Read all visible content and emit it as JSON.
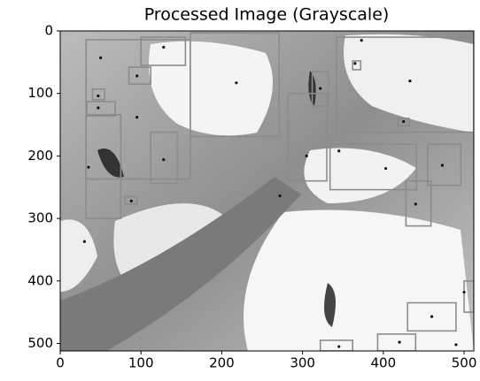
{
  "chart_data": {
    "type": "image",
    "title": "Processed Image (Grayscale)",
    "xlim": [
      0,
      512
    ],
    "ylim": [
      0,
      512
    ],
    "xticks": [
      0,
      100,
      200,
      300,
      400,
      500
    ],
    "yticks": [
      0,
      100,
      200,
      300,
      400,
      500
    ],
    "y_inverted": true,
    "box_color": "#8c8c8c",
    "point_color": "#111111",
    "boxes": [
      [
        32,
        14,
        161,
        237
      ],
      [
        161,
        3,
        271,
        169
      ],
      [
        342,
        10,
        512,
        162
      ],
      [
        112,
        162,
        145,
        244
      ],
      [
        32,
        134,
        75,
        300
      ],
      [
        282,
        100,
        330,
        240
      ],
      [
        334,
        181,
        441,
        254
      ],
      [
        455,
        181,
        496,
        247
      ],
      [
        428,
        240,
        459,
        312
      ],
      [
        430,
        435,
        490,
        480
      ],
      [
        500,
        400,
        512,
        450
      ],
      [
        393,
        485,
        440,
        512
      ],
      [
        322,
        495,
        362,
        512
      ],
      [
        312,
        65,
        332,
        120
      ],
      [
        362,
        48,
        372,
        62
      ],
      [
        85,
        58,
        112,
        85
      ],
      [
        40,
        93,
        55,
        110
      ],
      [
        33,
        113,
        68,
        136
      ],
      [
        418,
        140,
        432,
        152
      ],
      [
        80,
        265,
        95,
        277
      ],
      [
        100,
        10,
        155,
        55
      ]
    ],
    "points": [
      [
        50,
        43
      ],
      [
        128,
        26
      ],
      [
        218,
        83
      ],
      [
        322,
        92
      ],
      [
        365,
        52
      ],
      [
        373,
        15
      ],
      [
        95,
        72
      ],
      [
        47,
        104
      ],
      [
        47,
        123
      ],
      [
        95,
        138
      ],
      [
        425,
        145
      ],
      [
        433,
        80
      ],
      [
        128,
        206
      ],
      [
        35,
        218
      ],
      [
        88,
        272
      ],
      [
        272,
        264
      ],
      [
        305,
        200
      ],
      [
        345,
        192
      ],
      [
        403,
        220
      ],
      [
        473,
        215
      ],
      [
        440,
        277
      ],
      [
        460,
        457
      ],
      [
        500,
        418
      ],
      [
        420,
        498
      ],
      [
        490,
        502
      ],
      [
        345,
        505
      ],
      [
        30,
        337
      ]
    ]
  }
}
